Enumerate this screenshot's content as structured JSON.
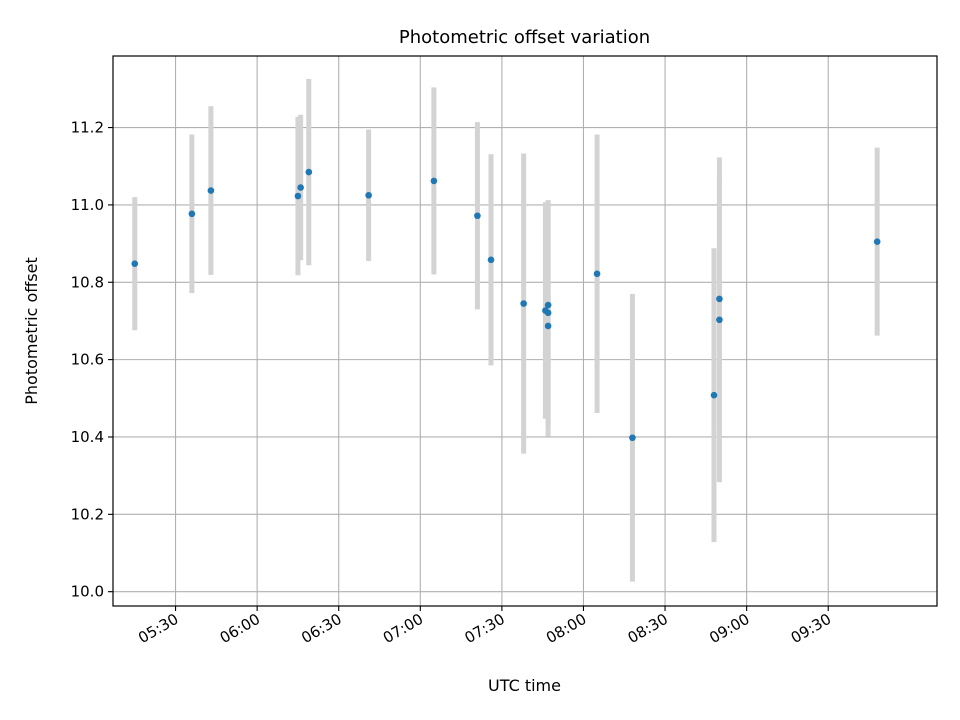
{
  "chart_data": {
    "type": "scatter",
    "title": "Photometric offset variation",
    "xlabel": "UTC time",
    "ylabel": "Photometric offset",
    "xlim": [
      "05:07",
      "10:10"
    ],
    "ylim": [
      9.963,
      11.385
    ],
    "x_ticks": [
      "05:30",
      "06:00",
      "06:30",
      "07:00",
      "07:30",
      "08:00",
      "08:30",
      "09:00",
      "09:30"
    ],
    "y_ticks": [
      "10.0",
      "10.2",
      "10.4",
      "10.6",
      "10.8",
      "11.0",
      "11.2"
    ],
    "grid": true,
    "point_color": "#1f77b4",
    "errorbar_color": "#d3d3d3",
    "points": [
      {
        "x": "05:15",
        "y": 10.848,
        "err": 0.172
      },
      {
        "x": "05:36",
        "y": 10.977,
        "err": 0.205
      },
      {
        "x": "05:43",
        "y": 11.037,
        "err": 0.218
      },
      {
        "x": "06:15",
        "y": 11.023,
        "err": 0.205
      },
      {
        "x": "06:16",
        "y": 11.045,
        "err": 0.188
      },
      {
        "x": "06:19",
        "y": 11.085,
        "err": 0.241
      },
      {
        "x": "06:41",
        "y": 11.025,
        "err": 0.17
      },
      {
        "x": "07:05",
        "y": 11.062,
        "err": 0.242
      },
      {
        "x": "07:21",
        "y": 10.972,
        "err": 0.242
      },
      {
        "x": "07:26",
        "y": 10.858,
        "err": 0.273
      },
      {
        "x": "07:38",
        "y": 10.745,
        "err": 0.388
      },
      {
        "x": "07:46",
        "y": 10.727,
        "err": 0.28
      },
      {
        "x": "07:47",
        "y": 10.721,
        "err": 0.291
      },
      {
        "x": "07:47",
        "y": 10.687,
        "err": 0.286
      },
      {
        "x": "07:47",
        "y": 10.741,
        "err": 0.271
      },
      {
        "x": "08:05",
        "y": 10.822,
        "err": 0.36
      },
      {
        "x": "08:18",
        "y": 10.398,
        "err": 0.372
      },
      {
        "x": "08:48",
        "y": 10.508,
        "err": 0.38
      },
      {
        "x": "08:50",
        "y": 10.703,
        "err": 0.42
      },
      {
        "x": "08:50",
        "y": 10.757,
        "err": 0.315
      },
      {
        "x": "09:48",
        "y": 10.905,
        "err": 0.243
      }
    ]
  }
}
